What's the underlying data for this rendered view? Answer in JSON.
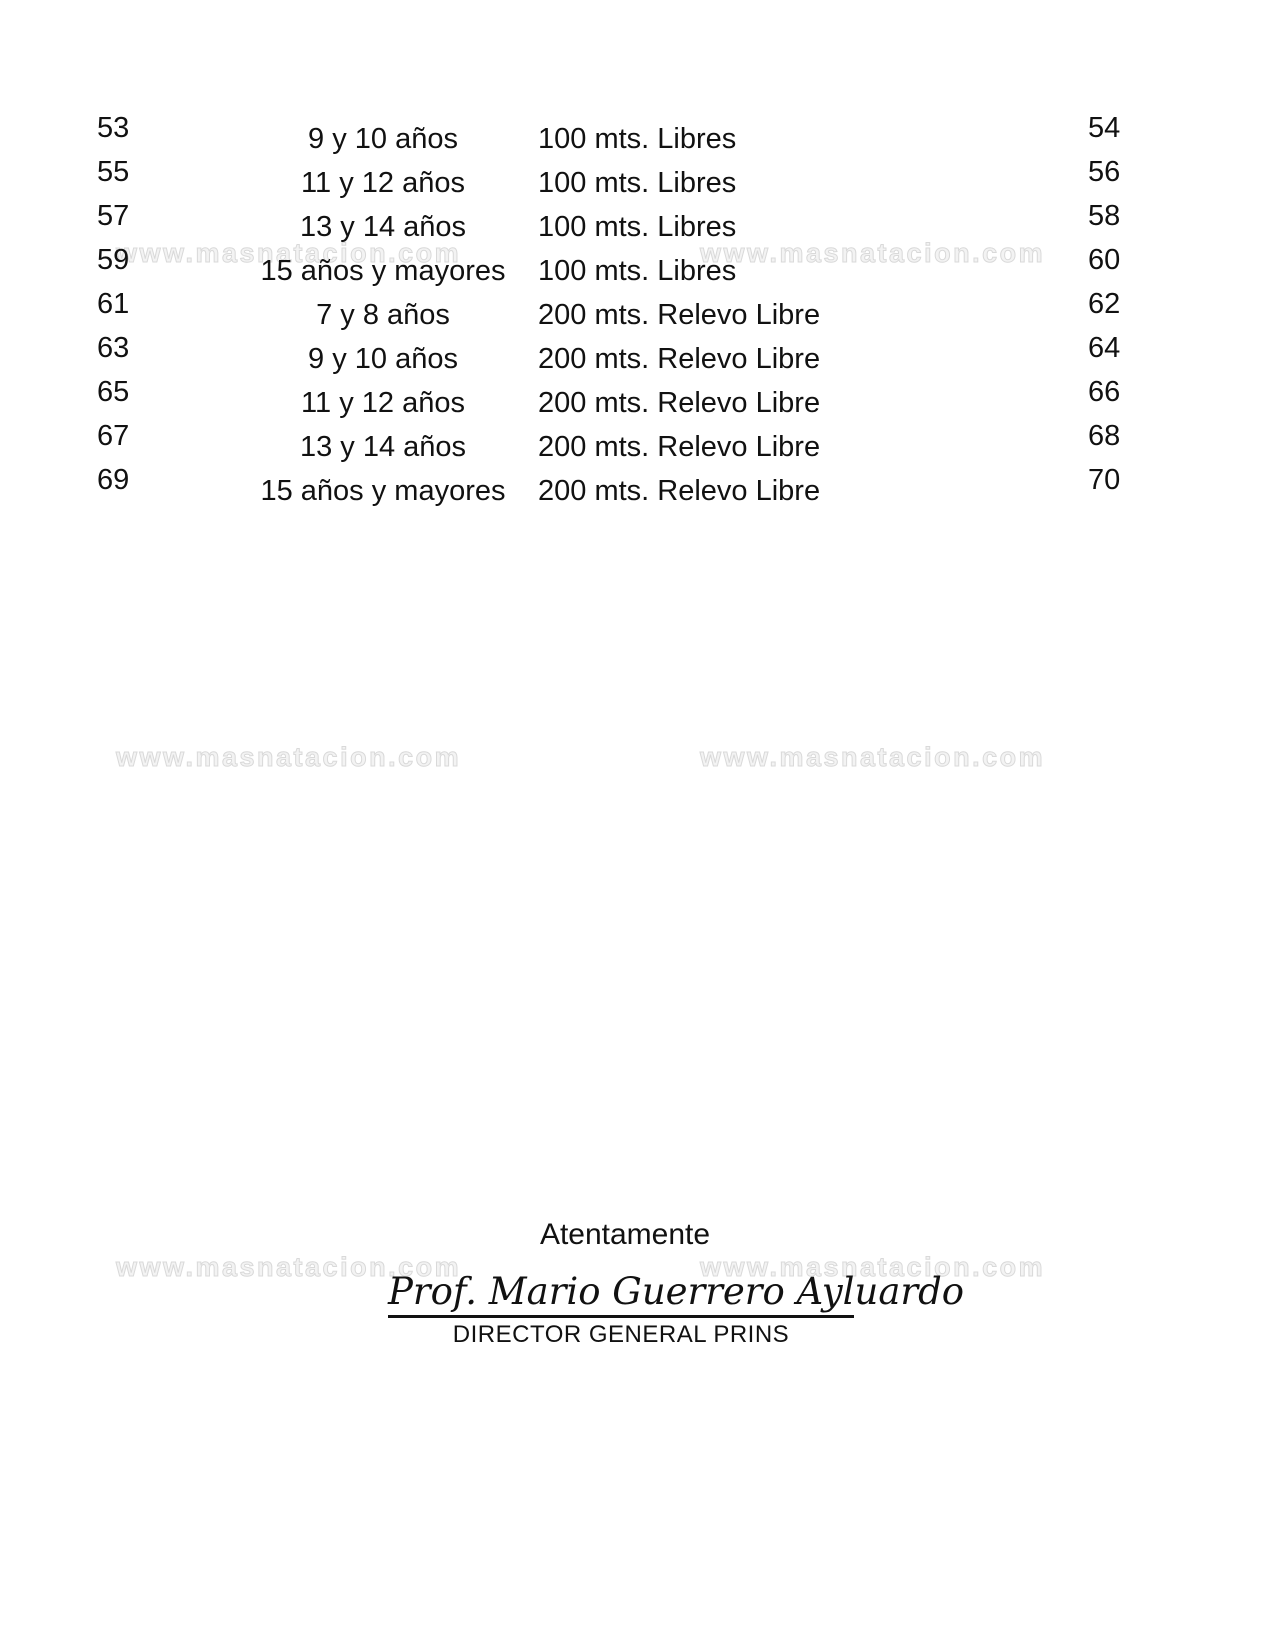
{
  "watermark": {
    "text": "www.masnatacion.com"
  },
  "table": {
    "rows": [
      {
        "left_number": "53",
        "age_group": "9 y 10 años",
        "event": "100 mts. Libres",
        "right_number": "54"
      },
      {
        "left_number": "55",
        "age_group": "11 y 12 años",
        "event": "100 mts. Libres",
        "right_number": "56"
      },
      {
        "left_number": "57",
        "age_group": "13 y 14 años",
        "event": "100 mts. Libres",
        "right_number": "58"
      },
      {
        "left_number": "59",
        "age_group": "15 años y mayores",
        "event": "100 mts. Libres",
        "right_number": "60"
      },
      {
        "left_number": "61",
        "age_group": "7 y 8 años",
        "event": "200 mts. Relevo Libre",
        "right_number": "62"
      },
      {
        "left_number": "63",
        "age_group": "9 y 10 años",
        "event": "200 mts. Relevo Libre",
        "right_number": "64"
      },
      {
        "left_number": "65",
        "age_group": "11 y 12 años",
        "event": "200 mts. Relevo Libre",
        "right_number": "66"
      },
      {
        "left_number": "67",
        "age_group": "13 y 14 años",
        "event": "200 mts. Relevo Libre",
        "right_number": "68"
      },
      {
        "left_number": "69",
        "age_group": "15 años y mayores",
        "event": "200 mts. Relevo Libre",
        "right_number": "70"
      }
    ]
  },
  "closing": {
    "salutation": "Atentamente",
    "signature_name": "Prof. Mario Guerrero Ayluardo",
    "signature_title": "DIRECTOR GENERAL PRINS"
  }
}
